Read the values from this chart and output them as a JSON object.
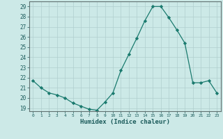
{
  "x": [
    0,
    1,
    2,
    3,
    4,
    5,
    6,
    7,
    8,
    9,
    10,
    11,
    12,
    13,
    14,
    15,
    16,
    17,
    18,
    19,
    20,
    21,
    22,
    23
  ],
  "y": [
    21.7,
    21.0,
    20.5,
    20.3,
    20.0,
    19.5,
    19.2,
    18.9,
    18.8,
    19.6,
    20.5,
    22.7,
    24.3,
    25.9,
    27.6,
    29.0,
    29.0,
    27.9,
    26.7,
    25.4,
    21.5,
    21.5,
    21.7,
    20.5
  ],
  "xlabel": "Humidex (Indice chaleur)",
  "xlim": [
    -0.5,
    23.5
  ],
  "ylim": [
    18.7,
    29.5
  ],
  "yticks": [
    19,
    20,
    21,
    22,
    23,
    24,
    25,
    26,
    27,
    28,
    29
  ],
  "xticks": [
    0,
    1,
    2,
    3,
    4,
    5,
    6,
    7,
    8,
    9,
    10,
    11,
    12,
    13,
    14,
    15,
    16,
    17,
    18,
    19,
    20,
    21,
    22,
    23
  ],
  "line_color": "#1a7a6e",
  "marker": "D",
  "marker_size": 2.2,
  "bg_color": "#cce9e7",
  "grid_color": "#b0cece",
  "axis_color": "#607070",
  "label_color": "#1a5a5a"
}
